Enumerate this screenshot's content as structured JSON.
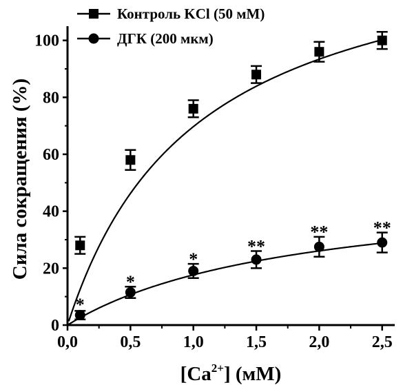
{
  "chart_data": {
    "type": "scatter",
    "xlabel_main": "[Ca",
    "xlabel_sup": "2+",
    "xlabel_rest": "] (мМ)",
    "ylabel": "Сила сокращения (%)",
    "xlim": [
      0,
      2.6
    ],
    "ylim": [
      0,
      105
    ],
    "x_ticks": [
      "0,0",
      "0,5",
      "1,0",
      "1,5",
      "2,0",
      "2,5"
    ],
    "x_tick_values": [
      0,
      0.5,
      1.0,
      1.5,
      2.0,
      2.5
    ],
    "y_ticks": [
      "0",
      "20",
      "40",
      "60",
      "80",
      "100"
    ],
    "y_tick_values": [
      0,
      20,
      40,
      60,
      80,
      100
    ],
    "legend_position": "top-left",
    "series": [
      {
        "name": "Контроль KCl (50 мМ)",
        "marker": "square",
        "x": [
          0.1,
          0.5,
          1.0,
          1.5,
          2.0,
          2.5
        ],
        "y": [
          28,
          58,
          76,
          88,
          96,
          100
        ],
        "error": [
          3,
          3.5,
          3,
          3,
          3.5,
          3
        ],
        "fit": {
          "vmax": 141.5,
          "km": 1.03
        }
      },
      {
        "name": "ДГК (200 мкм)",
        "marker": "circle",
        "x": [
          0.1,
          0.5,
          1.0,
          1.5,
          2.0,
          2.5
        ],
        "y": [
          3.5,
          11.5,
          19,
          23,
          27.5,
          29
        ],
        "error": [
          1.5,
          2,
          2.5,
          3,
          3.5,
          3.5
        ],
        "fit": {
          "vmax": 49.9,
          "km": 1.83
        }
      }
    ],
    "annotations": [
      {
        "x": 0.1,
        "y": 6.5,
        "text": "*"
      },
      {
        "x": 0.5,
        "y": 14.5,
        "text": "*"
      },
      {
        "x": 1.0,
        "y": 22.5,
        "text": "*"
      },
      {
        "x": 1.5,
        "y": 27,
        "text": "**"
      },
      {
        "x": 2.0,
        "y": 32,
        "text": "**"
      },
      {
        "x": 2.5,
        "y": 33.5,
        "text": "**"
      }
    ]
  }
}
